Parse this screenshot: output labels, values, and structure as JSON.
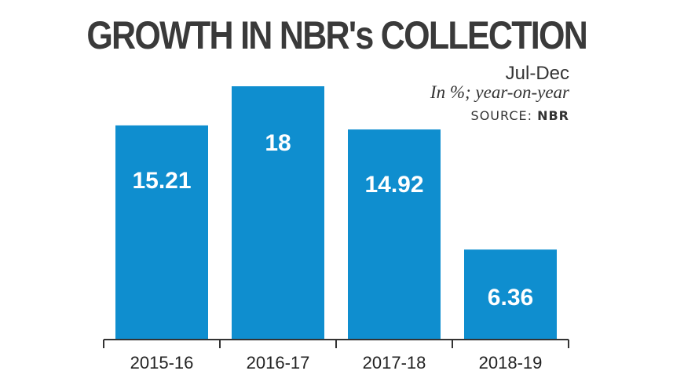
{
  "header": {
    "title": "GROWTH IN NBR's COLLECTION",
    "period": "Jul-Dec",
    "unit": "In %; year-on-year",
    "source_prefix": "SOURCE:",
    "source_name": "NBR"
  },
  "colors": {
    "bar": "#0f8ecf",
    "axis": "#333333"
  },
  "chart_data": {
    "type": "bar",
    "title": "GROWTH IN NBR's COLLECTION",
    "subtitle": "Jul-Dec",
    "xlabel": "",
    "ylabel": "In %; year-on-year",
    "categories": [
      "2015-16",
      "2016-17",
      "2017-18",
      "2018-19"
    ],
    "values": [
      15.21,
      18,
      14.92,
      6.36
    ],
    "value_labels": [
      "15.21",
      "18",
      "14.92",
      "6.36"
    ],
    "ylim": [
      0,
      18
    ],
    "grid": false
  }
}
